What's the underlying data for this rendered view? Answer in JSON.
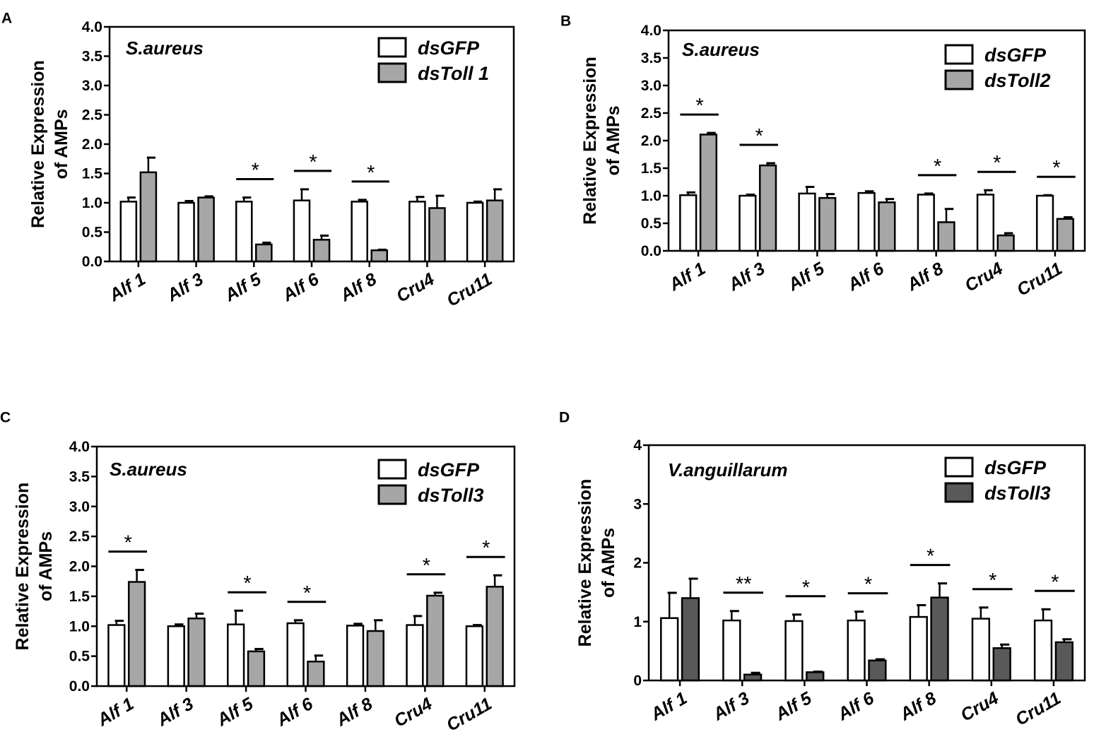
{
  "figure": {
    "background": "#ffffff"
  },
  "chart_data": [
    {
      "id": "A",
      "panel_label": "A",
      "type": "bar",
      "title": "S.aureus",
      "ylabel": [
        "Relative Expression",
        "of AMPs"
      ],
      "ylim": [
        0,
        4.0
      ],
      "yticks": [
        "0.0",
        "0.5",
        "1.0",
        "1.5",
        "2.0",
        "2.5",
        "3.0",
        "3.5",
        "4.0"
      ],
      "categories": [
        "Alf 1",
        "Alf 3",
        "Alf 5",
        "Alf 6",
        "Alf 8",
        "Cru4",
        "Cru11"
      ],
      "legend_position": "top-right",
      "series": [
        {
          "name": "dsGFP",
          "color": "#ffffff",
          "values": [
            1.02,
            1.0,
            1.02,
            1.04,
            1.02,
            1.02,
            1.0
          ],
          "errors": [
            0.07,
            0.03,
            0.07,
            0.19,
            0.03,
            0.08,
            0.02
          ]
        },
        {
          "name": "dsToll 1",
          "color": "#a6a6a6",
          "values": [
            1.52,
            1.09,
            0.29,
            0.37,
            0.19,
            0.91,
            1.04
          ],
          "errors": [
            0.25,
            0.02,
            0.03,
            0.07,
            0.01,
            0.21,
            0.19
          ]
        }
      ],
      "significance": [
        {
          "category_index": 2,
          "label": "*"
        },
        {
          "category_index": 3,
          "label": "*"
        },
        {
          "category_index": 4,
          "label": "*"
        }
      ]
    },
    {
      "id": "B",
      "panel_label": "B",
      "type": "bar",
      "title": "S.aureus",
      "ylabel": [
        "Relative Expression",
        "of AMPs"
      ],
      "ylim": [
        0,
        4.0
      ],
      "yticks": [
        "0.0",
        "0.5",
        "1.0",
        "1.5",
        "2.0",
        "2.5",
        "3.0",
        "3.5",
        "4.0"
      ],
      "categories": [
        "Alf 1",
        "Alf 3",
        "Alf 5",
        "Alf 6",
        "Alf 8",
        "Cru4",
        "Cru11"
      ],
      "legend_position": "top-right",
      "series": [
        {
          "name": "dsGFP",
          "color": "#ffffff",
          "values": [
            1.01,
            1.0,
            1.04,
            1.05,
            1.02,
            1.02,
            1.0
          ],
          "errors": [
            0.05,
            0.02,
            0.12,
            0.03,
            0.02,
            0.08,
            0.01
          ]
        },
        {
          "name": "dsToll2",
          "color": "#a6a6a6",
          "values": [
            2.11,
            1.55,
            0.96,
            0.88,
            0.52,
            0.28,
            0.58
          ],
          "errors": [
            0.03,
            0.04,
            0.07,
            0.06,
            0.24,
            0.04,
            0.03
          ]
        }
      ],
      "significance": [
        {
          "category_index": 0,
          "label": "*"
        },
        {
          "category_index": 1,
          "label": "*"
        },
        {
          "category_index": 4,
          "label": "*"
        },
        {
          "category_index": 5,
          "label": "*"
        },
        {
          "category_index": 6,
          "label": "*"
        }
      ]
    },
    {
      "id": "C",
      "panel_label": "C",
      "type": "bar",
      "title": "S.aureus",
      "ylabel": [
        "Relative Expression",
        "of AMPs"
      ],
      "ylim": [
        0,
        4.0
      ],
      "yticks": [
        "0.0",
        "0.5",
        "1.0",
        "1.5",
        "2.0",
        "2.5",
        "3.0",
        "3.5",
        "4.0"
      ],
      "categories": [
        "Alf 1",
        "Alf 3",
        "Alf 5",
        "Alf 6",
        "Alf 8",
        "Cru4",
        "Cru11"
      ],
      "legend_position": "top-right",
      "series": [
        {
          "name": "dsGFP",
          "color": "#ffffff",
          "values": [
            1.02,
            1.0,
            1.03,
            1.05,
            1.01,
            1.02,
            1.0
          ],
          "errors": [
            0.07,
            0.03,
            0.23,
            0.05,
            0.03,
            0.15,
            0.02
          ]
        },
        {
          "name": "dsToll3",
          "color": "#a6a6a6",
          "values": [
            1.74,
            1.13,
            0.58,
            0.41,
            0.92,
            1.51,
            1.66
          ],
          "errors": [
            0.2,
            0.08,
            0.04,
            0.1,
            0.18,
            0.05,
            0.19
          ]
        }
      ],
      "significance": [
        {
          "category_index": 0,
          "label": "*"
        },
        {
          "category_index": 2,
          "label": "*"
        },
        {
          "category_index": 3,
          "label": "*"
        },
        {
          "category_index": 5,
          "label": "*"
        },
        {
          "category_index": 6,
          "label": "*"
        }
      ]
    },
    {
      "id": "D",
      "panel_label": "D",
      "type": "bar",
      "title": "V.anguillarum",
      "ylabel": [
        "Relative Expression",
        "of AMPs"
      ],
      "ylim": [
        0,
        4
      ],
      "yticks": [
        "0",
        "1",
        "2",
        "3",
        "4"
      ],
      "categories": [
        "Alf 1",
        "Alf 3",
        "Alf 5",
        "Alf 6",
        "Alf 8",
        "Cru4",
        "Cru11"
      ],
      "legend_position": "top-right",
      "series": [
        {
          "name": "dsGFP",
          "color": "#ffffff",
          "values": [
            1.06,
            1.02,
            1.01,
            1.02,
            1.08,
            1.05,
            1.02
          ],
          "errors": [
            0.43,
            0.16,
            0.11,
            0.15,
            0.2,
            0.19,
            0.19
          ]
        },
        {
          "name": "dsToll3",
          "color": "#595959",
          "values": [
            1.4,
            0.1,
            0.14,
            0.34,
            1.41,
            0.55,
            0.65
          ],
          "errors": [
            0.33,
            0.03,
            0.01,
            0.02,
            0.24,
            0.06,
            0.05
          ]
        }
      ],
      "significance": [
        {
          "category_index": 1,
          "label": "**"
        },
        {
          "category_index": 2,
          "label": "*"
        },
        {
          "category_index": 3,
          "label": "*"
        },
        {
          "category_index": 4,
          "label": "*"
        },
        {
          "category_index": 5,
          "label": "*"
        },
        {
          "category_index": 6,
          "label": "*"
        }
      ]
    }
  ]
}
